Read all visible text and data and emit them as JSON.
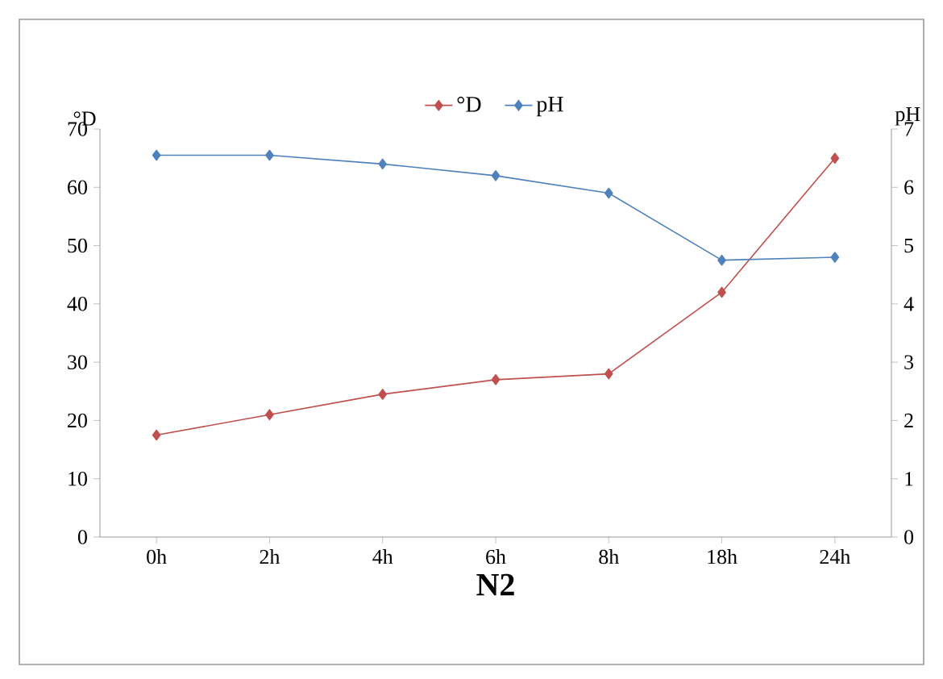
{
  "chart_data": {
    "type": "line",
    "title": "N2",
    "ylabel": "°D",
    "y2label": "pH",
    "categories": [
      "0h",
      "2h",
      "4h",
      "6h",
      "8h",
      "18h",
      "24h"
    ],
    "series": [
      {
        "name": "°D",
        "color": "#c0504d",
        "values": [
          17.5,
          21,
          24.5,
          27,
          28,
          42,
          65
        ]
      },
      {
        "name": "pH",
        "color": "#4f81bd",
        "axis": "y2",
        "values": [
          6.55,
          6.55,
          6.4,
          6.2,
          5.9,
          4.75,
          4.8
        ]
      }
    ],
    "ylim": [
      0,
      70
    ],
    "yticks": [
      0,
      10,
      20,
      30,
      40,
      50,
      60,
      70
    ],
    "y2lim": [
      0,
      7
    ],
    "y2ticks": [
      0,
      1,
      2,
      3,
      4,
      5,
      6,
      7
    ],
    "legend": "top",
    "marker": "diamond",
    "grid": false
  }
}
